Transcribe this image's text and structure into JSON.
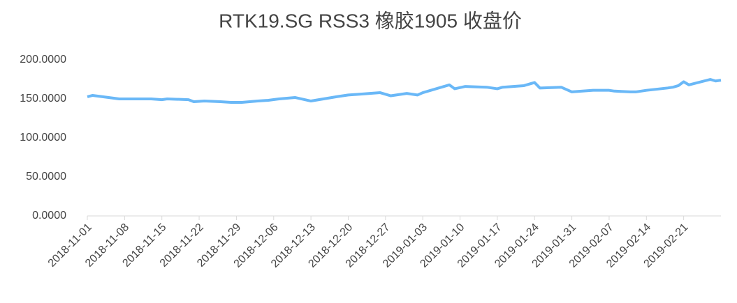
{
  "chart_data": {
    "type": "line",
    "title": "RTK19.SG RSS3 橡胶1905 收盘价",
    "x": [
      "2018-11-01",
      "2018-11-02",
      "2018-11-05",
      "2018-11-07",
      "2018-11-09",
      "2018-11-13",
      "2018-11-15",
      "2018-11-16",
      "2018-11-20",
      "2018-11-21",
      "2018-11-23",
      "2018-11-26",
      "2018-11-28",
      "2018-11-30",
      "2018-12-03",
      "2018-12-05",
      "2018-12-07",
      "2018-12-10",
      "2018-12-13",
      "2018-12-18",
      "2018-12-20",
      "2018-12-26",
      "2018-12-27",
      "2018-12-28",
      "2018-12-31",
      "2019-01-02",
      "2019-01-03",
      "2019-01-04",
      "2019-01-08",
      "2019-01-09",
      "2019-01-11",
      "2019-01-15",
      "2019-01-17",
      "2019-01-18",
      "2019-01-22",
      "2019-01-24",
      "2019-01-25",
      "2019-01-29",
      "2019-01-30",
      "2019-01-31",
      "2019-02-04",
      "2019-02-07",
      "2019-02-08",
      "2019-02-11",
      "2019-02-12",
      "2019-02-14",
      "2019-02-18",
      "2019-02-19",
      "2019-02-20",
      "2019-02-21",
      "2019-02-22",
      "2019-02-26",
      "2019-02-27",
      "2019-02-28"
    ],
    "series": [
      {
        "name": "收盘价",
        "color": "#6ab8f7",
        "values": [
          152.7,
          154.5,
          151.8,
          150,
          150,
          150,
          149,
          150,
          149,
          146.4,
          147.3,
          146.4,
          145.5,
          145.5,
          147.3,
          148.2,
          150,
          151.8,
          147.3,
          153,
          155,
          158,
          156,
          154,
          157,
          155,
          158,
          160,
          168,
          163,
          166,
          165,
          163,
          165,
          167,
          171,
          164,
          165,
          162,
          159,
          161,
          161,
          160,
          159,
          159,
          161,
          164,
          165,
          167,
          172,
          168,
          175,
          173,
          174
        ]
      }
    ],
    "xlim": [
      "2018-11-01",
      "2019-02-28"
    ],
    "xticks": [
      "2018-11-01",
      "2018-11-08",
      "2018-11-15",
      "2018-11-22",
      "2018-11-29",
      "2018-12-06",
      "2018-12-13",
      "2018-12-20",
      "2018-12-27",
      "2019-01-03",
      "2019-01-10",
      "2019-01-17",
      "2019-01-24",
      "2019-01-31",
      "2019-02-07",
      "2019-02-14",
      "2019-02-21"
    ],
    "ylim": [
      0,
      200
    ],
    "yticks": [
      {
        "value": 0,
        "label": "0.0000"
      },
      {
        "value": 50,
        "label": "50.0000"
      },
      {
        "value": 100,
        "label": "100.0000"
      },
      {
        "value": 150,
        "label": "150.0000"
      },
      {
        "value": 200,
        "label": "200.0000"
      }
    ]
  }
}
